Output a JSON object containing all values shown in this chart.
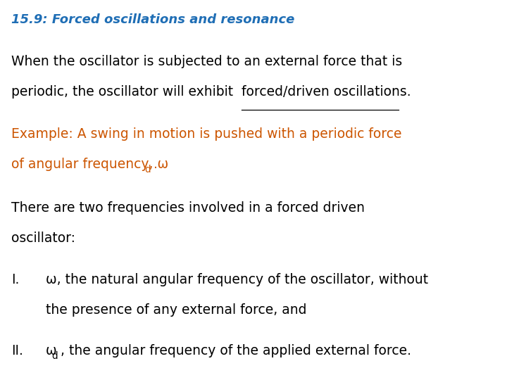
{
  "title": "15.9: Forced oscillations and resonance",
  "title_color": "#1F6EB5",
  "title_fontsize": 13,
  "background_color": "#FFFFFF",
  "body_color": "#000000",
  "example_color": "#CC5500",
  "body_fontsize": 13.5,
  "para1_line1": "When the oscillator is subjected to an external force that is",
  "para1_line2_normal": "periodic, the oscillator will exhibit ",
  "para1_line2_underline": "forced/driven oscillations",
  "para1_line2_end": ".",
  "para2_line1": "Example: A swing in motion is pushed with a periodic force",
  "para2_line2_normal": "of angular frequency, ω",
  "para2_line2_sub": "d",
  "para2_line2_end": ".",
  "para3_line1": "There are two frequencies involved in a forced driven",
  "para3_line2": "oscillator:",
  "item1_prefix": "I.",
  "item1_line1": "ω, the natural angular frequency of the oscillator, without",
  "item1_line2": "the presence of any external force, and",
  "item2_prefix": "II.",
  "item2_sym": "ω",
  "item2_sub": "d",
  "item2_rest": ", the angular frequency of the applied external force."
}
